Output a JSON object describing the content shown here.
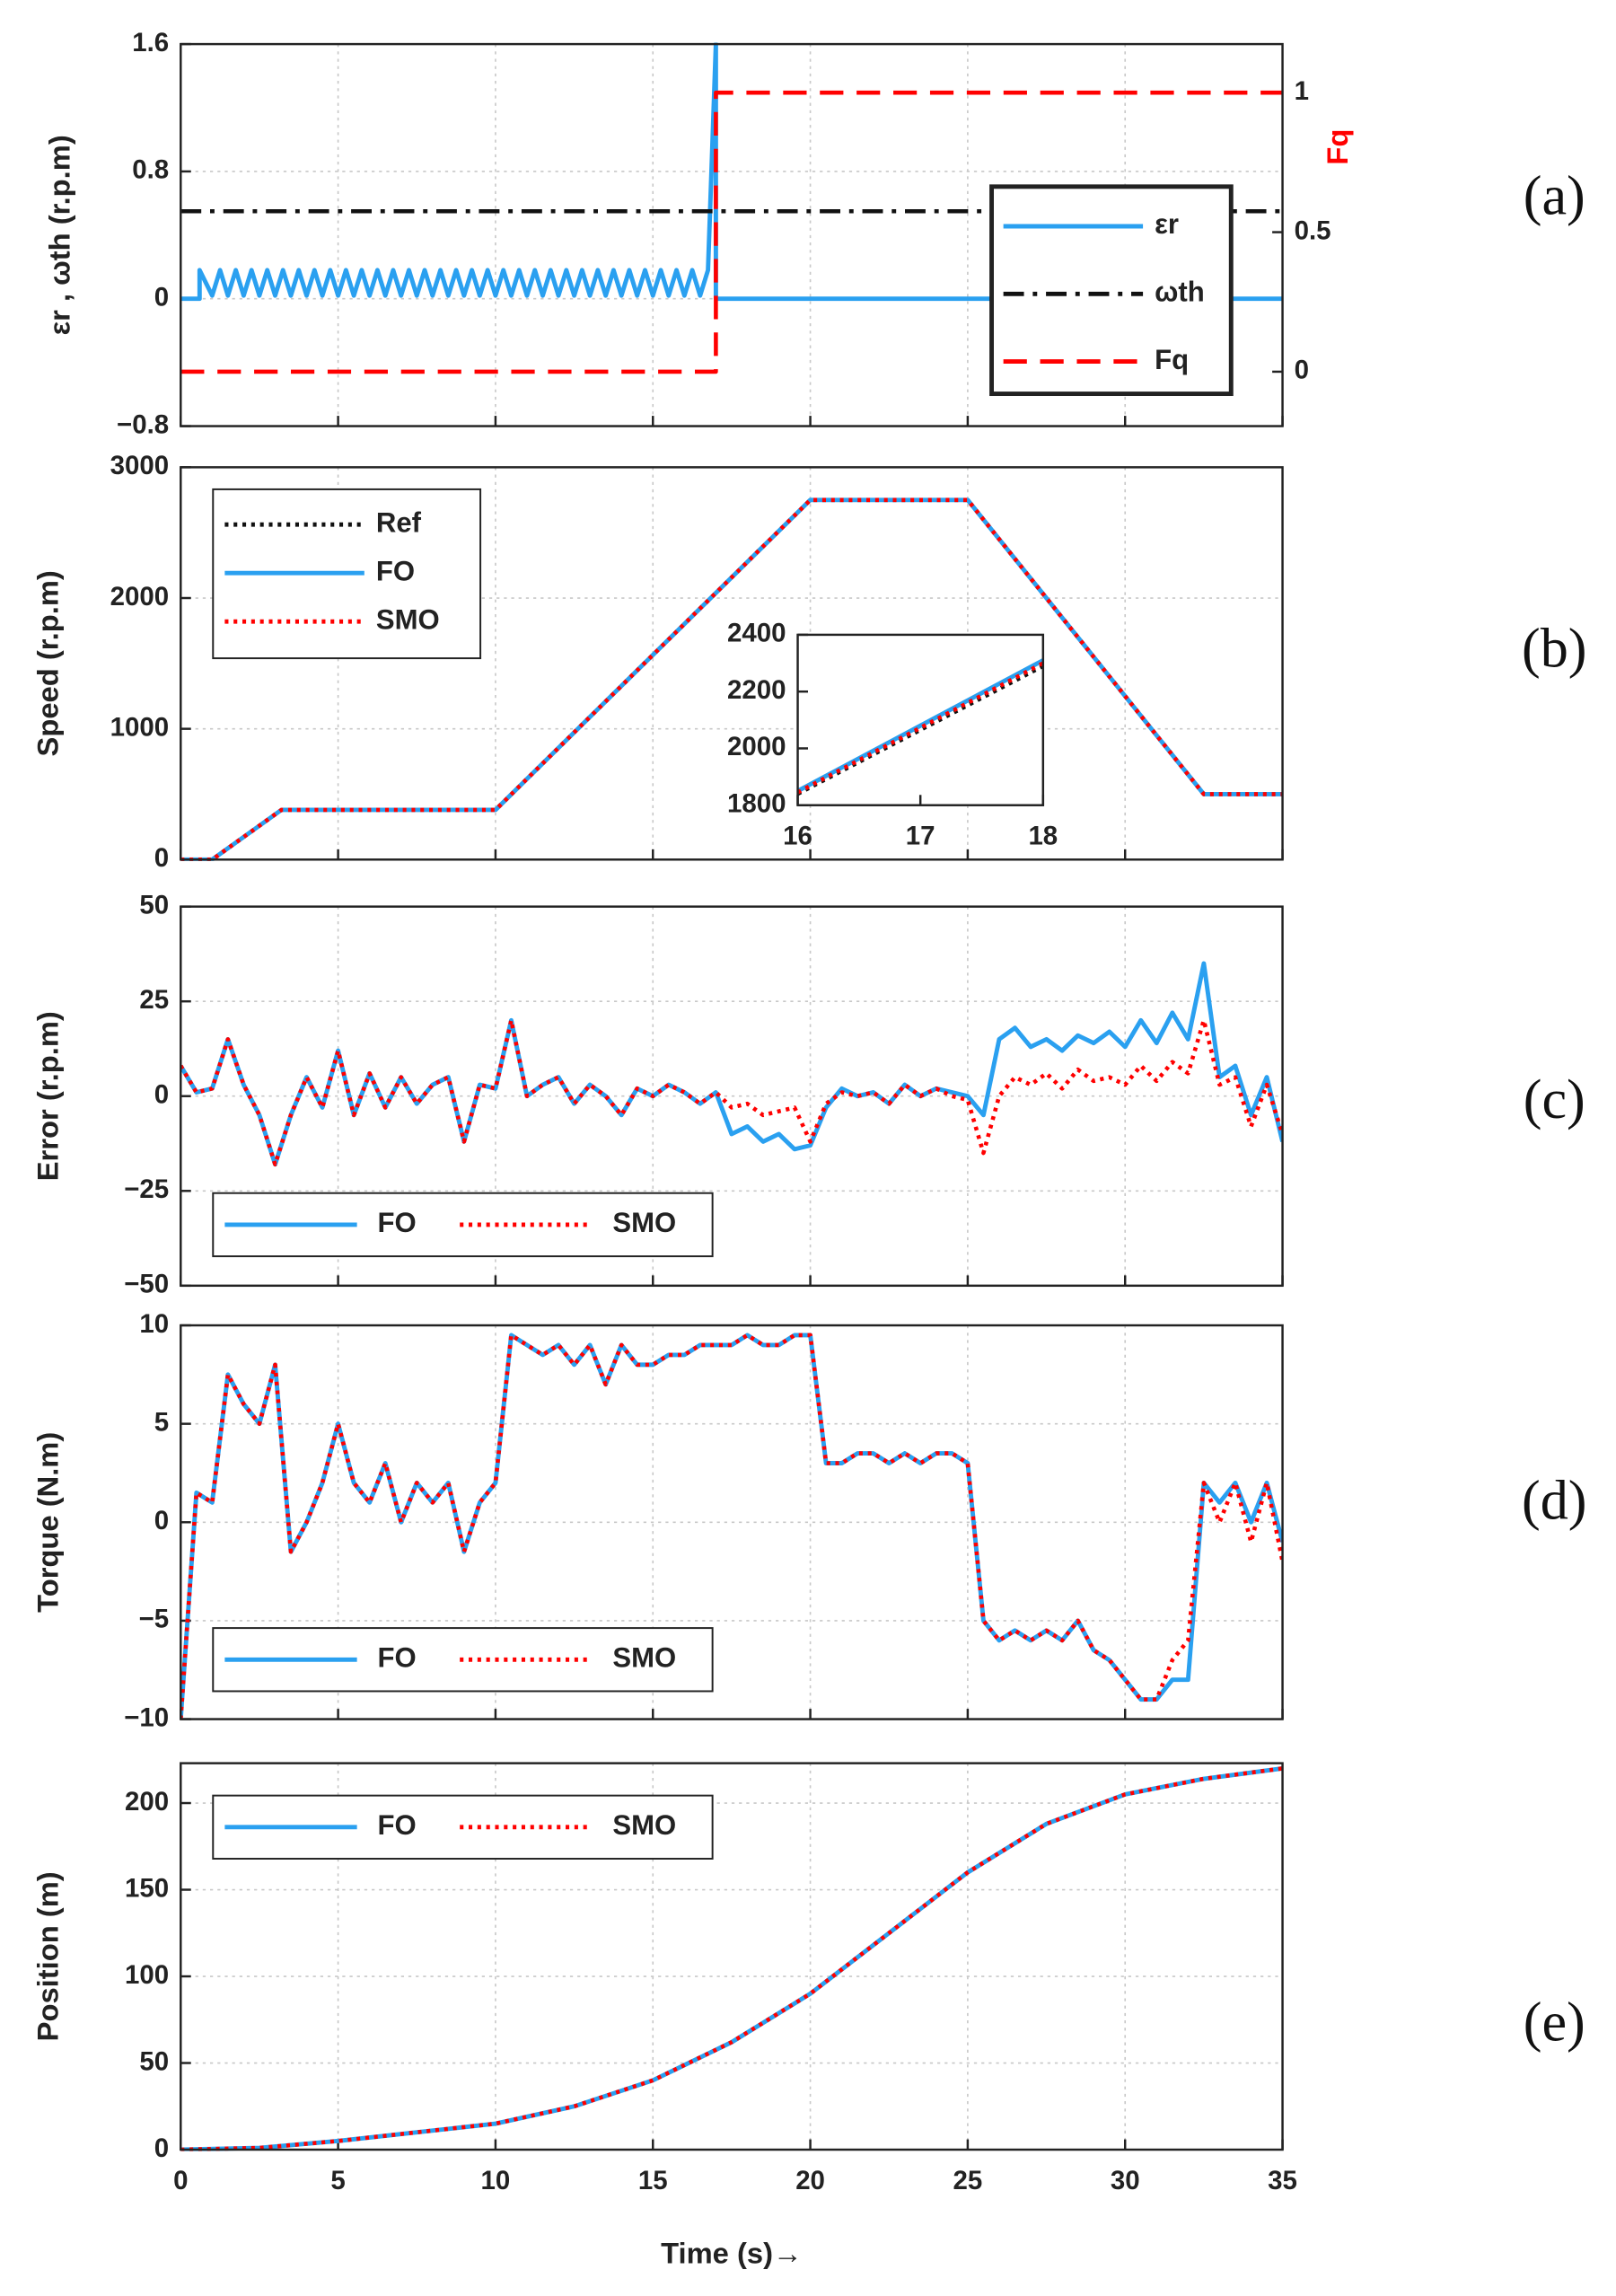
{
  "chart_data": [
    {
      "type": "line",
      "label": "(a)",
      "ylabel": "εr , ωth (r.p.m)",
      "y2label": "Fq",
      "ylim": [
        -0.8,
        1.6
      ],
      "yticks": [
        1.6,
        0.8,
        0,
        {
          "value": -0.8,
          "label": "−0.8"
        }
      ],
      "y2lim": [
        -0.195,
        1.174
      ],
      "y2ticks": [
        0,
        0.5,
        1
      ],
      "y2color": "#ff0000",
      "xlim": [
        0,
        35
      ],
      "xticks": [
        0,
        5,
        10,
        15,
        20,
        25,
        30,
        35
      ],
      "grid": true,
      "legend": "right",
      "series": [
        {
          "name": "εr",
          "color": "#2aa0f0",
          "style": "solid",
          "x": [
            0,
            0.6,
            0.6,
            1,
            1.25,
            1.5,
            1.75,
            2,
            2.25,
            2.5,
            2.75,
            3,
            3.25,
            3.5,
            3.75,
            4,
            4.25,
            4.5,
            4.75,
            5,
            5.25,
            5.5,
            5.75,
            6,
            6.25,
            6.5,
            6.75,
            7,
            7.25,
            7.5,
            7.75,
            8,
            8.25,
            8.5,
            8.75,
            9,
            9.25,
            9.5,
            9.75,
            10,
            10.25,
            10.5,
            10.75,
            11,
            11.25,
            11.5,
            11.75,
            12,
            12.25,
            12.5,
            12.75,
            13,
            13.25,
            13.5,
            13.75,
            14,
            14.25,
            14.5,
            14.75,
            15,
            15.25,
            15.5,
            15.75,
            16,
            16.25,
            16.5,
            16.75,
            17,
            17,
            35
          ],
          "values": [
            0,
            0,
            0.18,
            0.02,
            0.18,
            0.02,
            0.18,
            0.02,
            0.18,
            0.02,
            0.18,
            0.02,
            0.18,
            0.02,
            0.18,
            0.02,
            0.18,
            0.02,
            0.18,
            0.02,
            0.18,
            0.02,
            0.18,
            0.02,
            0.18,
            0.02,
            0.18,
            0.02,
            0.18,
            0.02,
            0.18,
            0.02,
            0.18,
            0.02,
            0.18,
            0.02,
            0.18,
            0.02,
            0.18,
            0.02,
            0.18,
            0.02,
            0.18,
            0.02,
            0.18,
            0.02,
            0.18,
            0.02,
            0.18,
            0.02,
            0.18,
            0.02,
            0.18,
            0.02,
            0.18,
            0.02,
            0.18,
            0.02,
            0.18,
            0.02,
            0.18,
            0.02,
            0.18,
            0.02,
            0.18,
            0.02,
            0.18,
            1.6,
            0,
            0
          ]
        },
        {
          "name": "ωth",
          "color": "#111111",
          "style": "dashdot",
          "x": [
            0,
            35
          ],
          "values": [
            0.55,
            0.55
          ]
        },
        {
          "name": "Fq",
          "color": "#ff0000",
          "style": "dashed",
          "axis": "y2",
          "x": [
            0,
            17,
            17,
            35
          ],
          "values": [
            0,
            0,
            1,
            1
          ]
        }
      ]
    },
    {
      "type": "line",
      "label": "(b)",
      "ylabel": "Speed (r.p.m)",
      "ylim": [
        0,
        3000
      ],
      "yticks": [
        0,
        1000,
        2000,
        3000
      ],
      "xlim": [
        0,
        35
      ],
      "xticks": [
        0,
        5,
        10,
        15,
        20,
        25,
        30,
        35
      ],
      "grid": true,
      "legend": "upper left",
      "x": [
        0,
        1,
        3.2,
        10,
        20,
        25,
        32.5,
        35
      ],
      "series": [
        {
          "name": "Ref",
          "color": "#111111",
          "style": "dotted",
          "values": [
            0,
            0,
            380,
            380,
            2750,
            2750,
            500,
            500
          ]
        },
        {
          "name": "FO",
          "color": "#2aa0f0",
          "style": "solid",
          "values": [
            0,
            0,
            380,
            380,
            2750,
            2750,
            500,
            500
          ]
        },
        {
          "name": "SMO",
          "color": "#ff0000",
          "style": "dotted",
          "values": [
            0,
            0,
            380,
            380,
            2750,
            2750,
            500,
            500
          ]
        }
      ]
    },
    {
      "type": "line",
      "ylim": [
        1800,
        2400
      ],
      "yticks": [
        1800,
        2000,
        2200,
        2400
      ],
      "xlim": [
        16,
        18
      ],
      "xticks": [
        16,
        17,
        18
      ],
      "grid": false,
      "x": [
        16,
        18
      ],
      "series": [
        {
          "color": "#111111",
          "style": "dotted",
          "values": [
            1840,
            2290
          ]
        },
        {
          "color": "#2aa0f0",
          "style": "solid",
          "values": [
            1850,
            2310
          ]
        },
        {
          "color": "#ff0000",
          "style": "dotted",
          "values": [
            1845,
            2300
          ]
        }
      ]
    },
    {
      "type": "line",
      "label": "(c)",
      "ylabel": "Error (r.p.m)",
      "ylim": [
        -50,
        50
      ],
      "yticks": [
        50,
        25,
        0,
        {
          "value": -25,
          "label": "−25"
        },
        {
          "value": -50,
          "label": "−50"
        }
      ],
      "xlim": [
        0,
        35
      ],
      "xticks": [
        0,
        5,
        10,
        15,
        20,
        25,
        30,
        35
      ],
      "grid": true,
      "legend": "lower left",
      "x": [
        0,
        0.5,
        1,
        1.5,
        2,
        2.5,
        3,
        3.5,
        4,
        4.5,
        5,
        5.5,
        6,
        6.5,
        7,
        7.5,
        8,
        8.5,
        9,
        9.5,
        10,
        10.5,
        11,
        11.5,
        12,
        12.5,
        13,
        13.5,
        14,
        14.5,
        15,
        15.5,
        16,
        16.5,
        17,
        17.5,
        18,
        18.5,
        19,
        19.5,
        20,
        20.5,
        21,
        21.5,
        22,
        22.5,
        23,
        23.5,
        24,
        24.5,
        25,
        25.5,
        26,
        26.5,
        27,
        27.5,
        28,
        28.5,
        29,
        29.5,
        30,
        30.5,
        31,
        31.5,
        32,
        32.5,
        33,
        33.5,
        34,
        34.5,
        35
      ],
      "series": [
        {
          "name": "FO",
          "color": "#2aa0f0",
          "style": "solid",
          "values": [
            8,
            1,
            2,
            15,
            3,
            -5,
            -18,
            -5,
            5,
            -3,
            12,
            -5,
            6,
            -3,
            5,
            -2,
            3,
            5,
            -12,
            3,
            2,
            20,
            0,
            3,
            5,
            -2,
            3,
            0,
            -5,
            2,
            0,
            3,
            1,
            -2,
            1,
            -10,
            -8,
            -12,
            -10,
            -14,
            -13,
            -3,
            2,
            0,
            1,
            -2,
            3,
            0,
            2,
            1,
            0,
            -5,
            15,
            18,
            13,
            15,
            12,
            16,
            14,
            17,
            13,
            20,
            14,
            22,
            15,
            35,
            5,
            8,
            -5,
            5,
            -12
          ]
        },
        {
          "name": "SMO",
          "color": "#ff0000",
          "style": "dotted",
          "values": [
            8,
            1,
            2,
            15,
            3,
            -5,
            -18,
            -5,
            5,
            -3,
            12,
            -5,
            6,
            -3,
            5,
            -2,
            3,
            5,
            -12,
            3,
            2,
            20,
            0,
            3,
            5,
            -2,
            3,
            0,
            -5,
            2,
            0,
            3,
            1,
            -2,
            1,
            -3,
            -2,
            -5,
            -4,
            -3,
            -12,
            -2,
            1,
            0,
            1,
            -2,
            3,
            0,
            2,
            0,
            -1,
            -15,
            0,
            5,
            3,
            6,
            2,
            7,
            4,
            5,
            3,
            8,
            4,
            9,
            6,
            20,
            3,
            5,
            -8,
            3,
            -10
          ]
        }
      ]
    },
    {
      "type": "line",
      "label": "(d)",
      "ylabel": "Torque (N.m)",
      "ylim": [
        -10,
        10
      ],
      "yticks": [
        10,
        5,
        0,
        {
          "value": -5,
          "label": "−5"
        },
        {
          "value": -10,
          "label": "−10"
        }
      ],
      "xlim": [
        0,
        35
      ],
      "xticks": [
        0,
        5,
        10,
        15,
        20,
        25,
        30,
        35
      ],
      "grid": true,
      "legend": "lower left",
      "x": [
        0,
        0.5,
        1,
        1.5,
        2,
        2.5,
        3,
        3.5,
        4,
        4.5,
        5,
        5.5,
        6,
        6.5,
        7,
        7.5,
        8,
        8.5,
        9,
        9.5,
        10,
        10.5,
        11,
        11.5,
        12,
        12.5,
        13,
        13.5,
        14,
        14.5,
        15,
        15.5,
        16,
        16.5,
        17,
        17.5,
        18,
        18.5,
        19,
        19.5,
        20,
        20.5,
        21,
        21.5,
        22,
        22.5,
        23,
        23.5,
        24,
        24.5,
        25,
        25.5,
        26,
        26.5,
        27,
        27.5,
        28,
        28.5,
        29,
        29.5,
        30,
        30.5,
        31,
        31.5,
        32,
        32.5,
        33,
        33.5,
        34,
        34.5,
        35
      ],
      "series": [
        {
          "name": "FO",
          "color": "#2aa0f0",
          "style": "solid",
          "values": [
            -10,
            1.5,
            1,
            7.5,
            6,
            5,
            8,
            -1.5,
            0,
            2,
            5,
            2,
            1,
            3,
            0,
            2,
            1,
            2,
            -1.5,
            1,
            2,
            9.5,
            9,
            8.5,
            9,
            8,
            9,
            7,
            9,
            8,
            8,
            8.5,
            8.5,
            9,
            9,
            9,
            9.5,
            9,
            9,
            9.5,
            9.5,
            3,
            3,
            3.5,
            3.5,
            3,
            3.5,
            3,
            3.5,
            3.5,
            3,
            -5,
            -6,
            -5.5,
            -6,
            -5.5,
            -6,
            -5,
            -6.5,
            -7,
            -8,
            -9,
            -9,
            -8,
            -8,
            2,
            1,
            2,
            0,
            2,
            -1
          ]
        },
        {
          "name": "SMO",
          "color": "#ff0000",
          "style": "dotted",
          "values": [
            -10,
            1.5,
            1,
            7.5,
            6,
            5,
            8,
            -1.5,
            0,
            2,
            5,
            2,
            1,
            3,
            0,
            2,
            1,
            2,
            -1.5,
            1,
            2,
            9.5,
            9,
            8.5,
            9,
            8,
            9,
            7,
            9,
            8,
            8,
            8.5,
            8.5,
            9,
            9,
            9,
            9.5,
            9,
            9,
            9.5,
            9.5,
            3,
            3,
            3.5,
            3.5,
            3,
            3.5,
            3,
            3.5,
            3.5,
            3,
            -5,
            -6,
            -5.5,
            -6,
            -5.5,
            -6,
            -5,
            -6.5,
            -7,
            -8,
            -9,
            -9,
            -7,
            -6,
            2,
            0,
            2,
            -1,
            2,
            -2
          ]
        }
      ]
    },
    {
      "type": "line",
      "label": "(e)",
      "ylabel": "Position (m)",
      "xlabel": "Time (s)→",
      "ylim": [
        0,
        223
      ],
      "yticks": [
        0,
        50,
        100,
        150,
        200
      ],
      "xlim": [
        0,
        35
      ],
      "xticks": [
        0,
        5,
        10,
        15,
        20,
        25,
        30,
        35
      ],
      "grid": true,
      "legend": "upper left",
      "x": [
        0,
        2.5,
        5,
        7.5,
        10,
        12.5,
        15,
        17.5,
        20,
        22.5,
        25,
        27.5,
        30,
        32.5,
        35
      ],
      "series": [
        {
          "name": "FO",
          "color": "#2aa0f0",
          "style": "solid",
          "values": [
            0,
            1,
            5,
            10,
            15,
            25,
            40,
            62,
            90,
            125,
            160,
            188,
            205,
            214,
            220
          ]
        },
        {
          "name": "SMO",
          "color": "#ff0000",
          "style": "dotted",
          "values": [
            0,
            1,
            5,
            10,
            15,
            25,
            40,
            62,
            90,
            125,
            160,
            188,
            205,
            214,
            220
          ]
        }
      ]
    }
  ]
}
